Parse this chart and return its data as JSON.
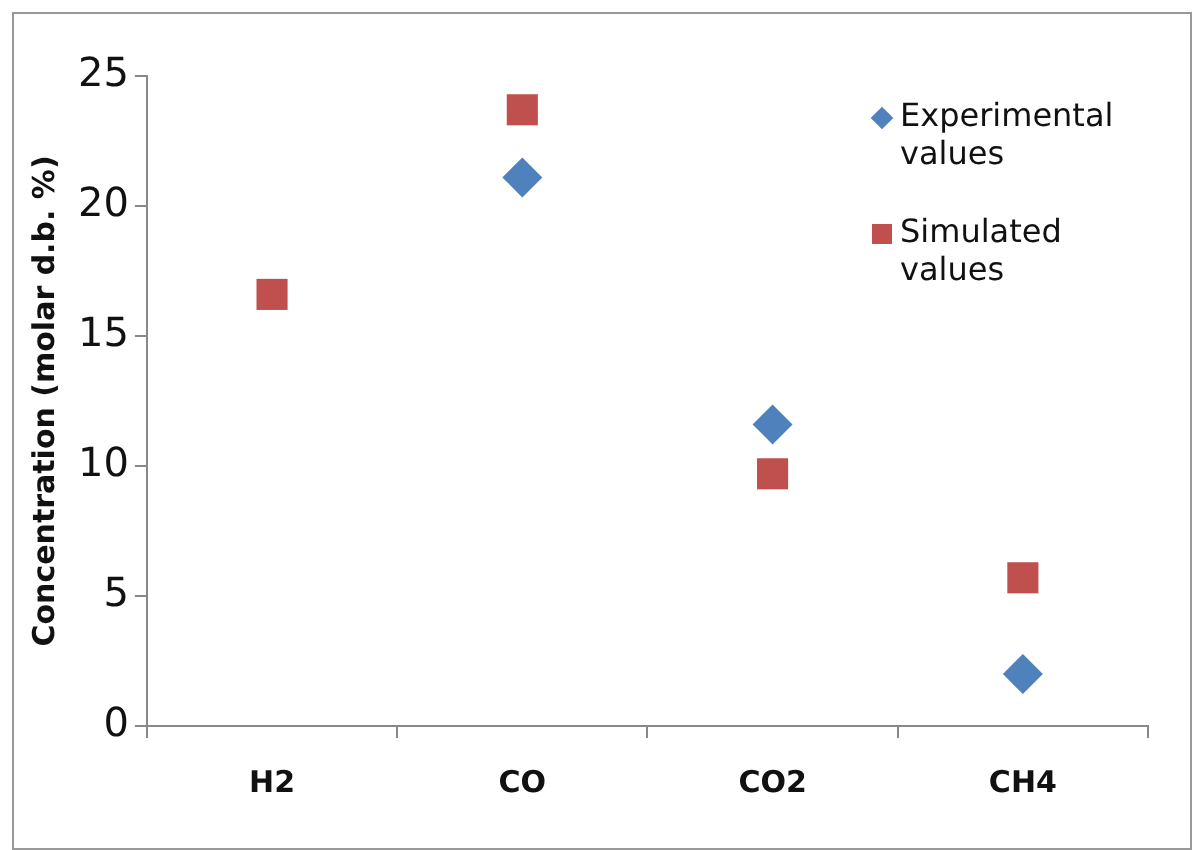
{
  "chart_data": {
    "type": "scatter",
    "ylabel": "Concentration (molar d.b. %)",
    "categories": [
      "H2",
      "CO",
      "CO2",
      "CH4"
    ],
    "series": [
      {
        "name": "Experimental values",
        "color": "#4f81bd",
        "marker": "diamond",
        "values": [
          null,
          21.1,
          11.6,
          2.0
        ]
      },
      {
        "name": "Simulated values",
        "color": "#c0504d",
        "marker": "square",
        "values": [
          16.6,
          23.7,
          9.7,
          5.7
        ]
      }
    ],
    "ylim": [
      0,
      25
    ],
    "yticks": [
      0,
      5,
      10,
      15,
      20,
      25
    ],
    "grid": false,
    "legend": "top right"
  }
}
